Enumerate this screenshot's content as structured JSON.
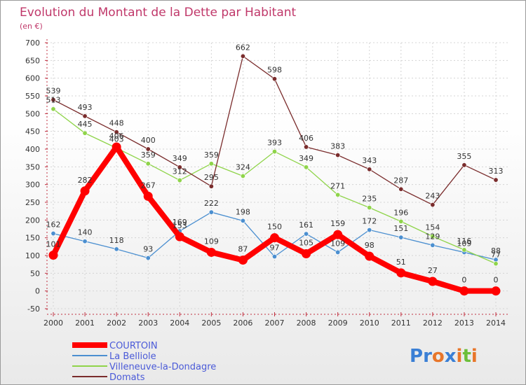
{
  "chart_data": {
    "type": "line",
    "title": "Evolution du Montant de la Dette par Habitant",
    "subtitle": "(en €)",
    "xlabel": "",
    "ylabel": "",
    "ylim": [
      -50,
      700
    ],
    "ytick_step": 50,
    "grid": true,
    "legend_position": "bottom-left",
    "categories": [
      "2000",
      "2001",
      "2002",
      "2003",
      "2004",
      "2005",
      "2006",
      "2007",
      "2008",
      "2009",
      "2010",
      "2011",
      "2012",
      "2013",
      "2014"
    ],
    "series": [
      {
        "name": "COURTOIN",
        "color": "#ff0000",
        "values": [
          101,
          282,
          406,
          267,
          153,
          109,
          87,
          150,
          105,
          159,
          98,
          51,
          27,
          0,
          0
        ]
      },
      {
        "name": "La Belliole",
        "color": "#4b8fd0",
        "values": [
          162,
          140,
          118,
          93,
          169,
          222,
          198,
          97,
          161,
          109,
          172,
          151,
          129,
          109,
          88
        ]
      },
      {
        "name": "Villeneuve-la-Dondagre",
        "color": "#8fd44a",
        "values": [
          513,
          445,
          403,
          359,
          312,
          359,
          324,
          393,
          349,
          271,
          235,
          196,
          154,
          116,
          77
        ]
      },
      {
        "name": "Domats",
        "color": "#7a2c2c",
        "values": [
          539,
          493,
          448,
          400,
          349,
          295,
          662,
          598,
          406,
          383,
          343,
          287,
          243,
          355,
          313
        ]
      }
    ]
  },
  "logo": {
    "text": "Proxiti",
    "letters": [
      "P",
      "r",
      "o",
      "x",
      "i",
      "t",
      "i"
    ],
    "colors": [
      "#3a7fd5",
      "#3a7fd5",
      "#e8762a",
      "#3a7fd5",
      "#e8762a",
      "#6cbf3a",
      "#e8762a"
    ]
  }
}
